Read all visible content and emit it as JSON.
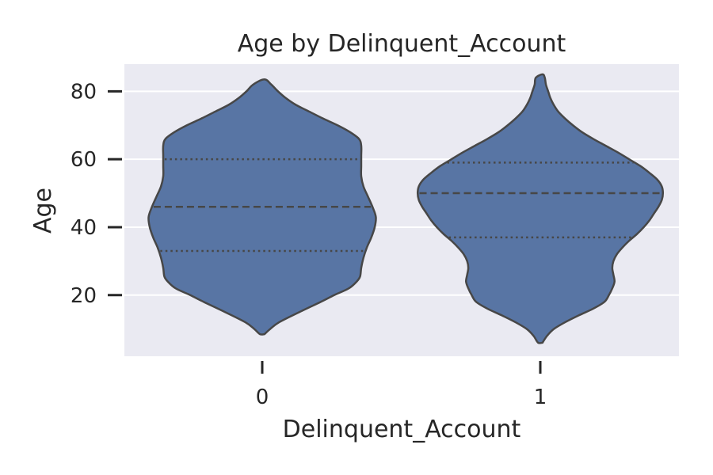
{
  "chart_data": {
    "type": "violin",
    "title": "Age by Delinquent_Account",
    "xlabel": "Delinquent_Account",
    "ylabel": "Age",
    "categories": [
      "0",
      "1"
    ],
    "y_ticks": [
      20,
      40,
      60,
      80
    ],
    "ylim": [
      2,
      88
    ],
    "grid": true,
    "background": "#eaeaf2",
    "fill_color": "#5875a4",
    "edge_color": "#474747",
    "violins": [
      {
        "category": "0",
        "min": 8.5,
        "max": 83.5,
        "quartiles": {
          "q1": 33,
          "median": 46,
          "q3": 60
        },
        "width_profile": [
          [
            8.5,
            0.02
          ],
          [
            10,
            0.07
          ],
          [
            12,
            0.15
          ],
          [
            15,
            0.33
          ],
          [
            18,
            0.52
          ],
          [
            20,
            0.64
          ],
          [
            22,
            0.77
          ],
          [
            24,
            0.84
          ],
          [
            25.5,
            0.87
          ],
          [
            28,
            0.88
          ],
          [
            31,
            0.9
          ],
          [
            34,
            0.93
          ],
          [
            37,
            0.97
          ],
          [
            40,
            1.0
          ],
          [
            43,
            1.01
          ],
          [
            46,
            0.98
          ],
          [
            49,
            0.94
          ],
          [
            52,
            0.9
          ],
          [
            55,
            0.88
          ],
          [
            58,
            0.88
          ],
          [
            61,
            0.88
          ],
          [
            64,
            0.88
          ],
          [
            66,
            0.86
          ],
          [
            68,
            0.78
          ],
          [
            70,
            0.67
          ],
          [
            72,
            0.54
          ],
          [
            74,
            0.42
          ],
          [
            76,
            0.3
          ],
          [
            78,
            0.21
          ],
          [
            80,
            0.14
          ],
          [
            82,
            0.08
          ],
          [
            83.5,
            0.02
          ]
        ]
      },
      {
        "category": "1",
        "min": 6,
        "max": 85,
        "quartiles": {
          "q1": 37,
          "median": 50,
          "q3": 59
        },
        "width_profile": [
          [
            6,
            0.02
          ],
          [
            8,
            0.06
          ],
          [
            10,
            0.12
          ],
          [
            12,
            0.22
          ],
          [
            14,
            0.34
          ],
          [
            16,
            0.47
          ],
          [
            18,
            0.57
          ],
          [
            20,
            0.61
          ],
          [
            22,
            0.64
          ],
          [
            24,
            0.66
          ],
          [
            26,
            0.65
          ],
          [
            28,
            0.64
          ],
          [
            30,
            0.65
          ],
          [
            32,
            0.68
          ],
          [
            34,
            0.73
          ],
          [
            36,
            0.79
          ],
          [
            38,
            0.86
          ],
          [
            40,
            0.92
          ],
          [
            42,
            0.97
          ],
          [
            44,
            1.01
          ],
          [
            46,
            1.05
          ],
          [
            48,
            1.08
          ],
          [
            50,
            1.09
          ],
          [
            52,
            1.08
          ],
          [
            54,
            1.04
          ],
          [
            56,
            0.97
          ],
          [
            58,
            0.89
          ],
          [
            60,
            0.79
          ],
          [
            62,
            0.69
          ],
          [
            64,
            0.58
          ],
          [
            66,
            0.47
          ],
          [
            68,
            0.37
          ],
          [
            70,
            0.29
          ],
          [
            72,
            0.22
          ],
          [
            74,
            0.16
          ],
          [
            76,
            0.12
          ],
          [
            78,
            0.09
          ],
          [
            80,
            0.07
          ],
          [
            82,
            0.05
          ],
          [
            84,
            0.04
          ],
          [
            85,
            0.02
          ]
        ]
      }
    ]
  }
}
